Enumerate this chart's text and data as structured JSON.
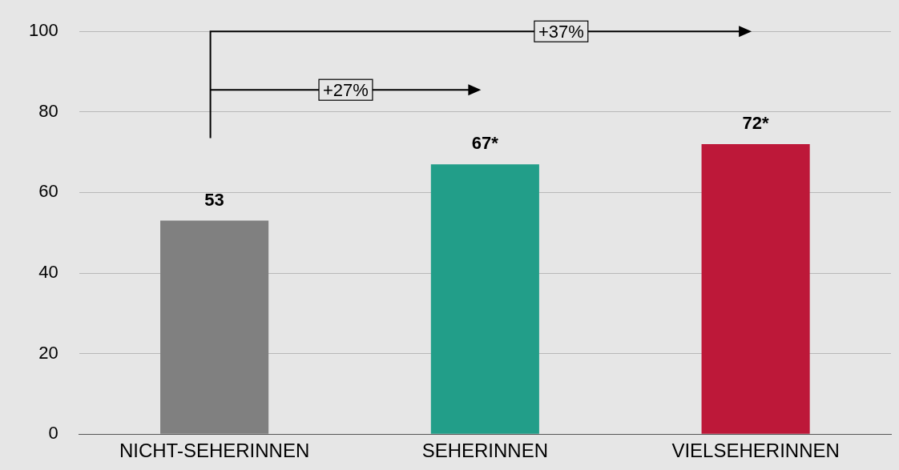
{
  "chart_data": {
    "type": "bar",
    "categories": [
      "NICHT-SEHERINNEN",
      "SEHERINNEN",
      "VIELSEHERINNEN"
    ],
    "values": [
      53,
      67,
      72
    ],
    "colors": [
      "#808080",
      "#229e89",
      "#bd1839"
    ],
    "value_labels": [
      "53",
      "67*",
      "72*"
    ],
    "ylim": [
      0,
      100
    ],
    "yticks": [
      0,
      20,
      40,
      60,
      80,
      100
    ],
    "grid": "y",
    "legend": false,
    "annotations": [
      "+27%",
      "+37%"
    ]
  }
}
